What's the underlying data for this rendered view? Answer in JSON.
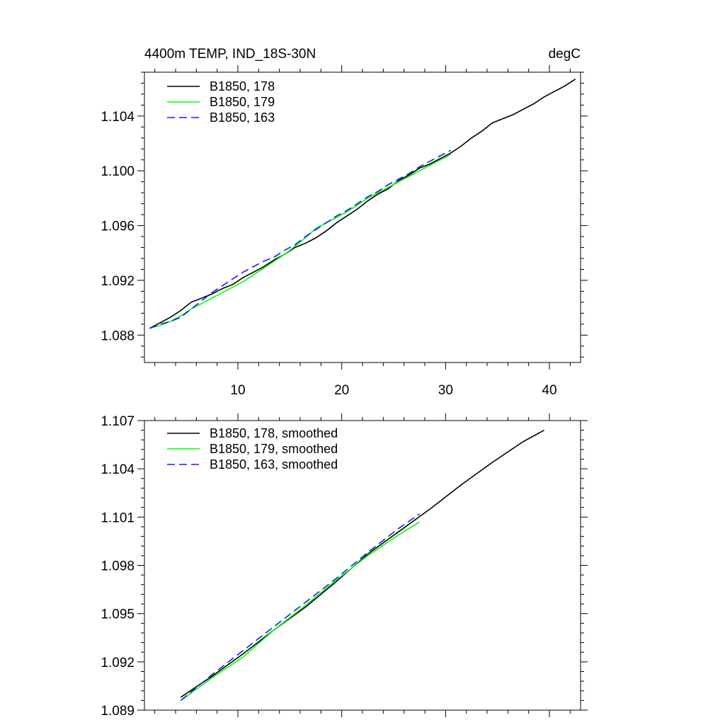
{
  "chart_data": [
    {
      "type": "line",
      "title": "4400m TEMP, IND_18S-30N",
      "units": "degC",
      "xlim": [
        1,
        43
      ],
      "ylim": [
        1.086,
        1.1072
      ],
      "xticks": [
        10,
        20,
        30,
        40
      ],
      "xtick_labels": [
        "10",
        "20",
        "30",
        "40"
      ],
      "yticks": [
        1.088,
        1.092,
        1.096,
        1.1,
        1.104
      ],
      "ytick_labels": [
        "1.088",
        "1.092",
        "1.096",
        "1.100",
        "1.104"
      ],
      "legend_position": "top-left",
      "series": [
        {
          "name": "B1850, 178",
          "color": "#000000",
          "dash": "solid",
          "x": [
            1.5,
            2.5,
            3.5,
            4.5,
            5.5,
            6.5,
            7.5,
            8.5,
            9.5,
            10.5,
            11.5,
            12.5,
            13.5,
            14.5,
            15.5,
            16.5,
            17.5,
            18.5,
            19.5,
            20.5,
            21.5,
            22.5,
            23.5,
            24.5,
            25.5,
            26.5,
            27.5,
            28.5,
            29.5,
            30.5,
            31.5,
            32.5,
            33.5,
            34.5,
            35.5,
            36.5,
            37.5,
            38.5,
            39.5,
            40.5,
            41.5,
            42.5
          ],
          "y": [
            1.0885,
            1.0889,
            1.0893,
            1.0898,
            1.0904,
            1.0907,
            1.091,
            1.0914,
            1.0917,
            1.0922,
            1.0926,
            1.093,
            1.0935,
            1.0939,
            1.0944,
            1.0947,
            1.0951,
            1.0956,
            1.0962,
            1.0967,
            1.0972,
            1.0978,
            1.0983,
            1.0987,
            1.0993,
            1.0997,
            1.1002,
            1.1005,
            1.1009,
            1.1013,
            1.1018,
            1.1024,
            1.1029,
            1.1035,
            1.1038,
            1.1041,
            1.1045,
            1.1049,
            1.1054,
            1.1058,
            1.1062,
            1.1067
          ]
        },
        {
          "name": "B1850, 179",
          "color": "#00ff00",
          "dash": "solid",
          "x": [
            1.5,
            2.5,
            3.5,
            4.5,
            5.5,
            6.5,
            7.5,
            8.5,
            9.5,
            10.5,
            11.5,
            12.5,
            13.5,
            14.5,
            15.5,
            16.5,
            17.5,
            18.5,
            19.5,
            20.5,
            21.5,
            22.5,
            23.5,
            24.5,
            25.5,
            26.5,
            27.5,
            28.5,
            29.5,
            30.5
          ],
          "y": [
            1.0885,
            1.0887,
            1.089,
            1.0894,
            1.0899,
            1.0903,
            1.0907,
            1.0911,
            1.0915,
            1.0919,
            1.0924,
            1.0929,
            1.0934,
            1.0939,
            1.0945,
            1.0951,
            1.0958,
            1.0962,
            1.0966,
            1.097,
            1.0975,
            1.098,
            1.0984,
            1.0988,
            1.0992,
            1.0996,
            1.1,
            1.1004,
            1.1008,
            1.1012
          ]
        },
        {
          "name": "B1850, 163",
          "color": "#1a1aff",
          "dash": "dashed",
          "x": [
            1.5,
            2.5,
            3.5,
            4.5,
            5.5,
            6.5,
            7.5,
            8.5,
            9.5,
            10.5,
            11.5,
            12.5,
            13.5,
            14.5,
            15.5,
            16.5,
            17.5,
            18.5,
            19.5,
            20.5,
            21.5,
            22.5,
            23.5,
            24.5,
            25.5,
            26.5,
            27.5,
            28.5,
            29.5,
            30.5
          ],
          "y": [
            1.0885,
            1.0888,
            1.089,
            1.0893,
            1.0899,
            1.0905,
            1.0911,
            1.0916,
            1.0921,
            1.0926,
            1.093,
            1.0934,
            1.0937,
            1.0942,
            1.0946,
            1.0952,
            1.0957,
            1.0962,
            1.0967,
            1.0971,
            1.0976,
            1.0981,
            1.0985,
            1.099,
            1.0994,
            1.0998,
            1.1003,
            1.1007,
            1.1011,
            1.1015
          ]
        }
      ]
    },
    {
      "type": "line",
      "xlim": [
        1,
        43
      ],
      "ylim": [
        1.089,
        1.107
      ],
      "xticks": [
        10,
        20,
        30,
        40
      ],
      "yticks": [
        1.089,
        1.092,
        1.095,
        1.098,
        1.101,
        1.104,
        1.107
      ],
      "ytick_labels": [
        "1.089",
        "1.092",
        "1.095",
        "1.098",
        "1.101",
        "1.104",
        "1.107"
      ],
      "legend_position": "top-left",
      "series": [
        {
          "name": "B1850, 178, smoothed",
          "color": "#000000",
          "dash": "solid",
          "x": [
            4.5,
            7.5,
            10.5,
            13.5,
            16.5,
            19.5,
            22.5,
            25.5,
            28.5,
            31.5,
            34.5,
            37.5,
            39.5
          ],
          "y": [
            1.0898,
            1.0911,
            1.0925,
            1.094,
            1.0954,
            1.097,
            1.0987,
            1.1001,
            1.1015,
            1.103,
            1.1044,
            1.1057,
            1.1064
          ]
        },
        {
          "name": "B1850, 179, smoothed",
          "color": "#00ff00",
          "dash": "solid",
          "x": [
            4.5,
            7.5,
            10.5,
            13.5,
            16.5,
            19.5,
            22.5,
            25.5,
            27.5
          ],
          "y": [
            1.0896,
            1.091,
            1.0923,
            1.094,
            1.0955,
            1.0971,
            1.0986,
            1.0999,
            1.1007
          ]
        },
        {
          "name": "B1850, 163, smoothed",
          "color": "#1a1aff",
          "dash": "dashed",
          "x": [
            4.5,
            7.5,
            10.5,
            13.5,
            16.5,
            19.5,
            22.5,
            25.5,
            27.5
          ],
          "y": [
            1.0896,
            1.0912,
            1.0927,
            1.0942,
            1.0957,
            1.0972,
            1.0988,
            1.1003,
            1.1012
          ]
        }
      ]
    }
  ]
}
